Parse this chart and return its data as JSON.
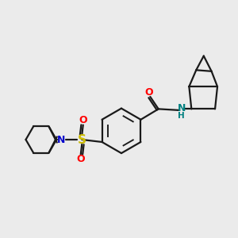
{
  "bg_color": "#ebebeb",
  "bond_color": "#1a1a1a",
  "o_color": "#ff0000",
  "n_color": "#0000cc",
  "s_color": "#ccbb00",
  "nh_color": "#008080",
  "line_width": 1.6,
  "figsize": [
    3.0,
    3.0
  ],
  "dpi": 100,
  "xlim": [
    0,
    10
  ],
  "ylim": [
    0,
    10
  ]
}
